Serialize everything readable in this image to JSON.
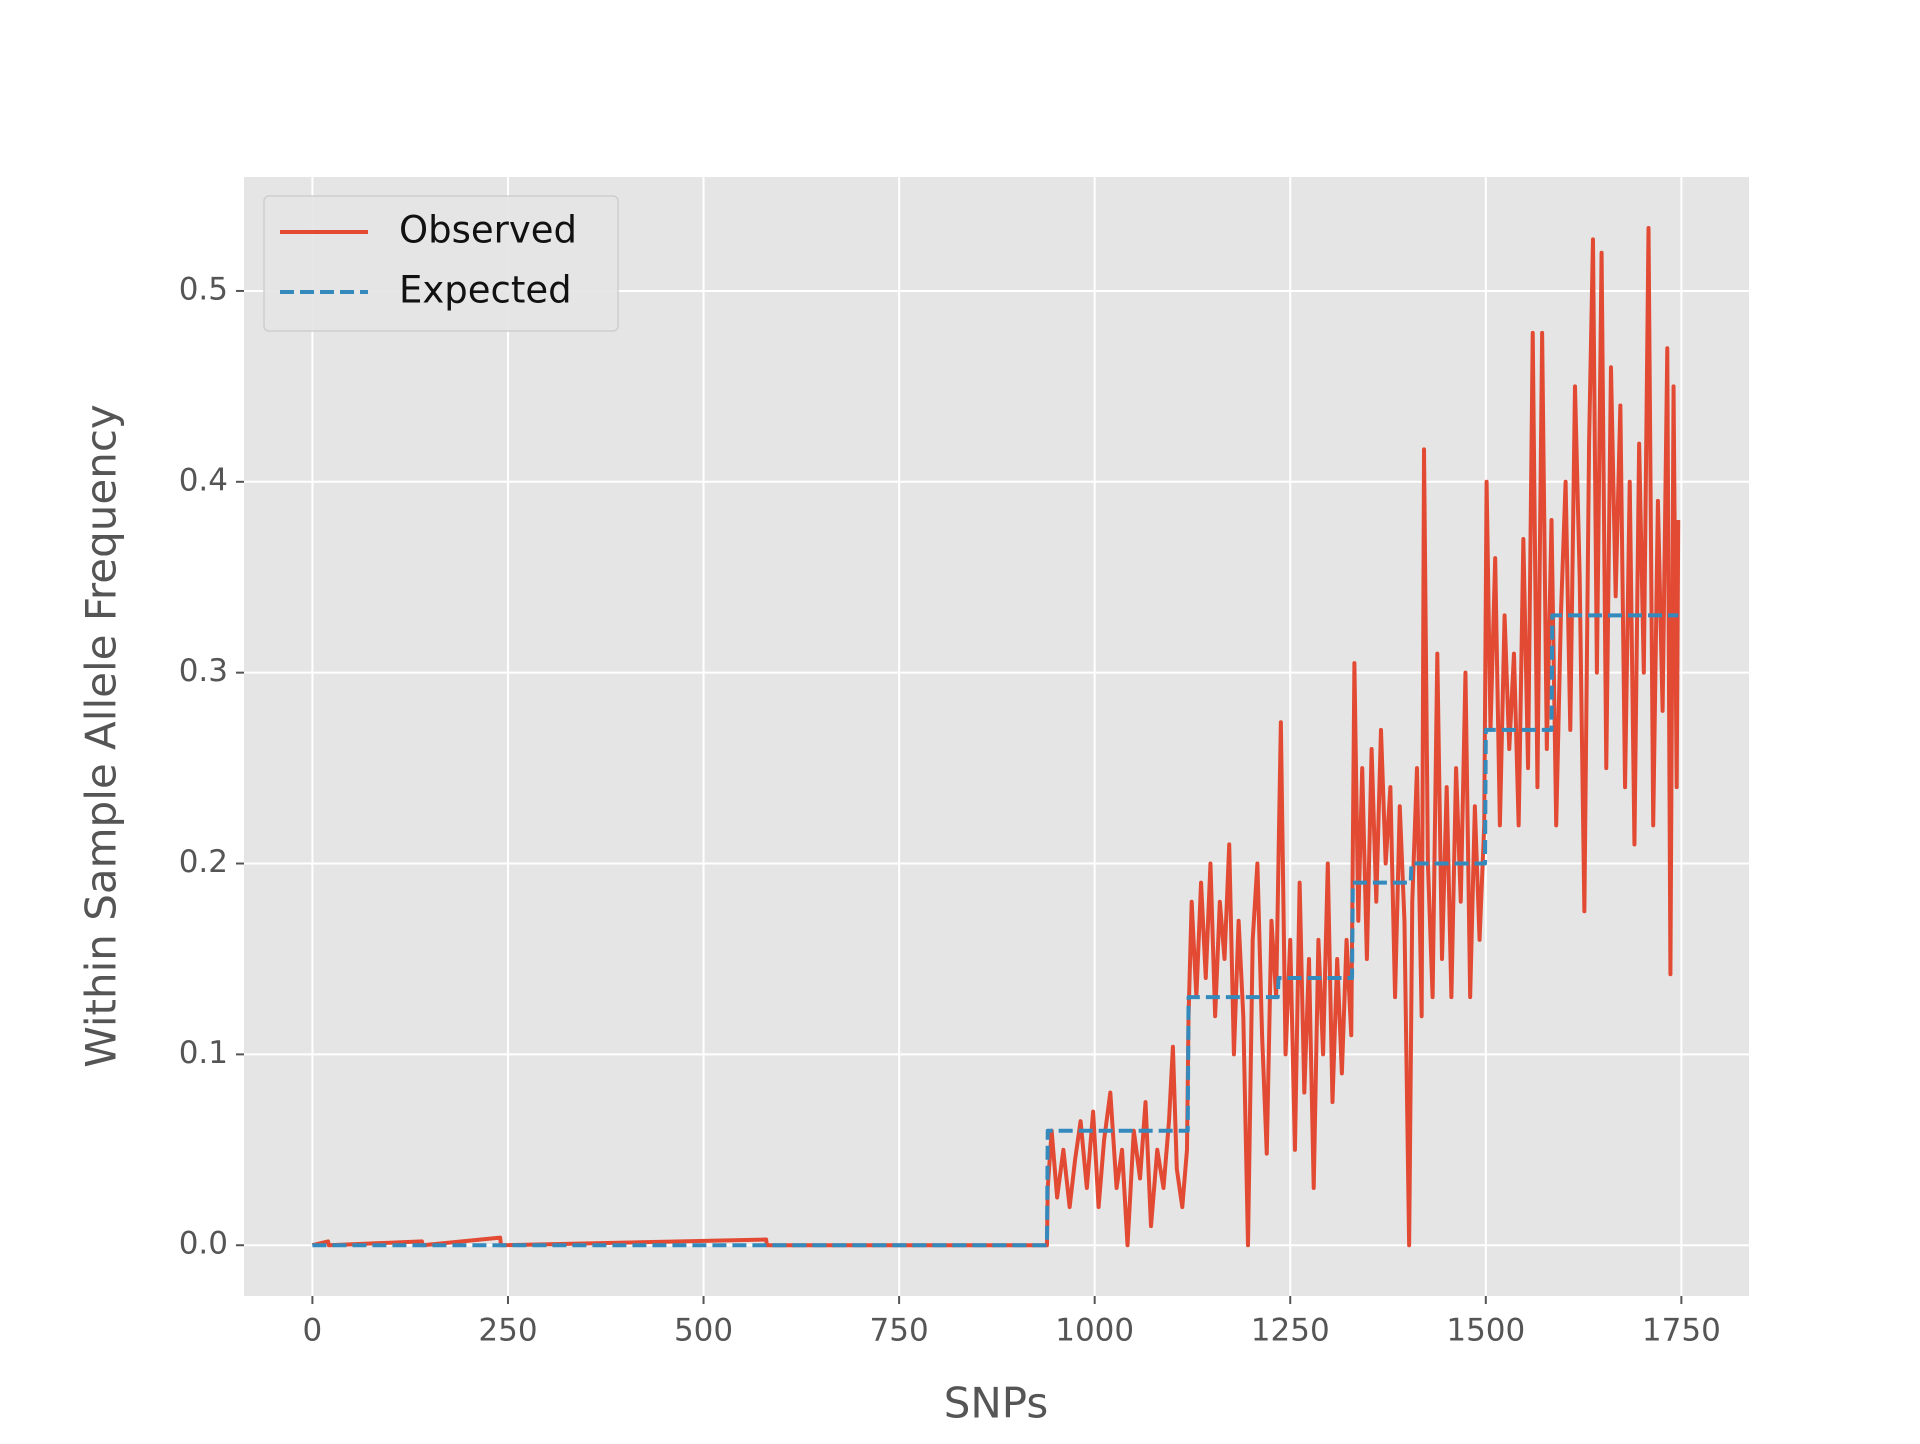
{
  "chart_data": {
    "type": "line",
    "xlabel": "SNPs",
    "ylabel": "Within Sample Allele Frequency",
    "xlim": [
      -87.45,
      1836.45
    ],
    "ylim": [
      -0.0266,
      0.5597
    ],
    "xticks": [
      0,
      250,
      500,
      750,
      1000,
      1250,
      1500,
      1750
    ],
    "yticks": [
      {
        "value": 0,
        "label": "0.0"
      },
      0.1,
      0.2,
      0.3,
      0.4,
      0.5
    ],
    "grid": true,
    "legend": "upper left",
    "series": [
      {
        "name": "Observed",
        "color": "#e24a33",
        "dash": false,
        "x": [
          0,
          20,
          21,
          140,
          141,
          240,
          241,
          580,
          581,
          939,
          940,
          945,
          952,
          960,
          968,
          975,
          982,
          990,
          998,
          1005,
          1012,
          1020,
          1028,
          1035,
          1042,
          1050,
          1058,
          1065,
          1072,
          1080,
          1088,
          1095,
          1100,
          1105,
          1112,
          1118,
          1120,
          1124,
          1130,
          1136,
          1142,
          1148,
          1154,
          1160,
          1166,
          1172,
          1178,
          1184,
          1190,
          1196,
          1202,
          1208,
          1214,
          1220,
          1226,
          1232,
          1238,
          1244,
          1250,
          1256,
          1262,
          1268,
          1274,
          1280,
          1286,
          1292,
          1298,
          1304,
          1310,
          1316,
          1322,
          1328,
          1332,
          1337,
          1342,
          1348,
          1354,
          1360,
          1366,
          1372,
          1378,
          1384,
          1390,
          1396,
          1402,
          1406,
          1412,
          1418,
          1421,
          1426,
          1432,
          1438,
          1444,
          1450,
          1456,
          1462,
          1468,
          1474,
          1480,
          1486,
          1492,
          1498,
          1501,
          1506,
          1512,
          1518,
          1524,
          1530,
          1536,
          1542,
          1548,
          1554,
          1560,
          1566,
          1572,
          1578,
          1584,
          1590,
          1596,
          1602,
          1608,
          1614,
          1620,
          1626,
          1632,
          1637,
          1642,
          1648,
          1654,
          1660,
          1666,
          1672,
          1678,
          1684,
          1690,
          1696,
          1702,
          1708,
          1714,
          1720,
          1726,
          1732,
          1736,
          1740,
          1744,
          1746
        ],
        "values": [
          0,
          0.002,
          0,
          0.002,
          0,
          0.004,
          0,
          0.003,
          0,
          0,
          0.03,
          0.06,
          0.025,
          0.05,
          0.02,
          0.045,
          0.065,
          0.03,
          0.07,
          0.02,
          0.055,
          0.08,
          0.03,
          0.05,
          0.0,
          0.06,
          0.035,
          0.075,
          0.01,
          0.05,
          0.03,
          0.065,
          0.104,
          0.04,
          0.02,
          0.05,
          0.12,
          0.18,
          0.13,
          0.19,
          0.14,
          0.2,
          0.12,
          0.18,
          0.15,
          0.21,
          0.1,
          0.17,
          0.12,
          0.0,
          0.16,
          0.2,
          0.11,
          0.048,
          0.17,
          0.13,
          0.274,
          0.1,
          0.16,
          0.05,
          0.19,
          0.08,
          0.15,
          0.03,
          0.16,
          0.1,
          0.2,
          0.075,
          0.15,
          0.09,
          0.16,
          0.11,
          0.305,
          0.17,
          0.25,
          0.15,
          0.26,
          0.18,
          0.27,
          0.2,
          0.24,
          0.13,
          0.23,
          0.17,
          0.0,
          0.18,
          0.25,
          0.12,
          0.417,
          0.2,
          0.13,
          0.31,
          0.15,
          0.24,
          0.13,
          0.25,
          0.18,
          0.3,
          0.13,
          0.23,
          0.16,
          0.22,
          0.4,
          0.27,
          0.36,
          0.22,
          0.33,
          0.26,
          0.31,
          0.22,
          0.37,
          0.25,
          0.478,
          0.24,
          0.478,
          0.26,
          0.38,
          0.22,
          0.33,
          0.4,
          0.27,
          0.45,
          0.35,
          0.175,
          0.42,
          0.527,
          0.3,
          0.52,
          0.25,
          0.46,
          0.34,
          0.44,
          0.24,
          0.4,
          0.21,
          0.42,
          0.3,
          0.533,
          0.22,
          0.39,
          0.28,
          0.47,
          0.142,
          0.45,
          0.24,
          0.38
        ]
      },
      {
        "name": "Expected",
        "color": "#348abd",
        "dash": true,
        "x": [
          0,
          939,
          940,
          1119,
          1120,
          1234,
          1235,
          1329,
          1330,
          1404,
          1405,
          1499,
          1500,
          1584,
          1585,
          1746
        ],
        "values": [
          0,
          0,
          0.06,
          0.06,
          0.13,
          0.13,
          0.14,
          0.14,
          0.19,
          0.19,
          0.2,
          0.2,
          0.27,
          0.27,
          0.33,
          0.33
        ]
      }
    ]
  }
}
